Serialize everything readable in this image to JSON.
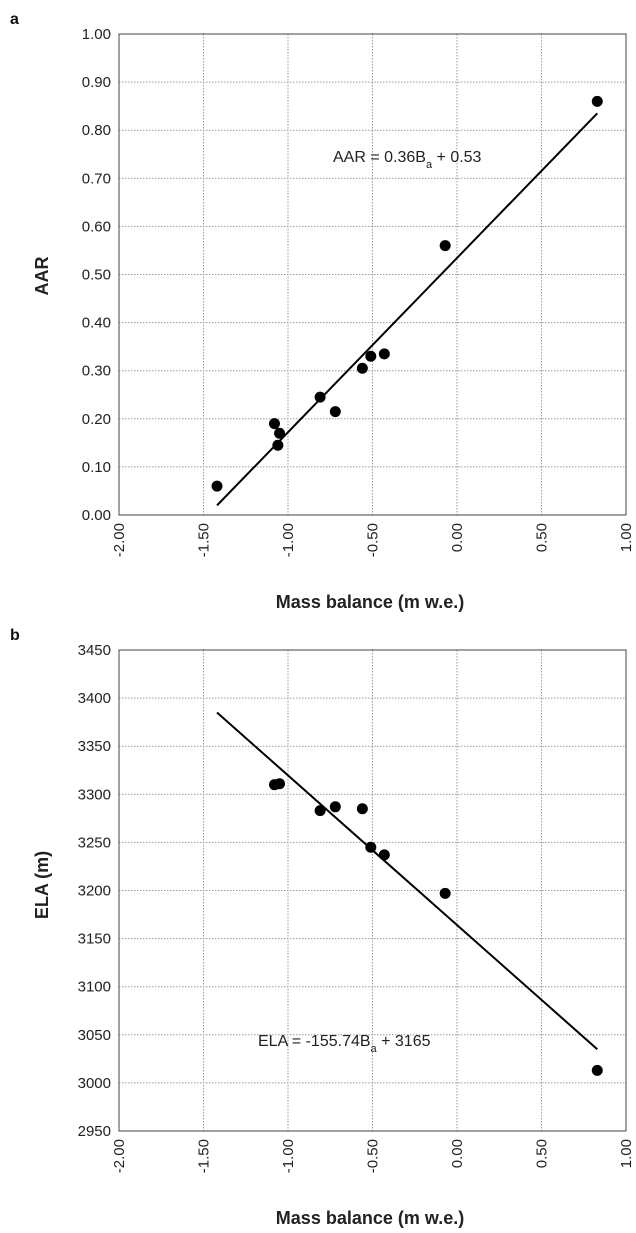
{
  "chart_data": [
    {
      "type": "scatter",
      "panel": "a",
      "xlabel": "Mass balance (m w.e.)",
      "ylabel": "AAR",
      "xlim": [
        -2.0,
        1.0
      ],
      "ylim": [
        0.0,
        1.0
      ],
      "xticks": [
        "-2.00",
        "-1.50",
        "-1.00",
        "-0.50",
        "0.00",
        "0.50",
        "1.00"
      ],
      "yticks": [
        "0.00",
        "0.10",
        "0.20",
        "0.30",
        "0.40",
        "0.50",
        "0.60",
        "0.70",
        "0.80",
        "0.90",
        "1.00"
      ],
      "grid": true,
      "points": [
        {
          "x": -1.42,
          "y": 0.06
        },
        {
          "x": -1.08,
          "y": 0.19
        },
        {
          "x": -1.05,
          "y": 0.17
        },
        {
          "x": -1.06,
          "y": 0.145
        },
        {
          "x": -0.81,
          "y": 0.245
        },
        {
          "x": -0.72,
          "y": 0.215
        },
        {
          "x": -0.56,
          "y": 0.305
        },
        {
          "x": -0.51,
          "y": 0.33
        },
        {
          "x": -0.43,
          "y": 0.335
        },
        {
          "x": -0.07,
          "y": 0.56
        },
        {
          "x": 0.83,
          "y": 0.86
        }
      ],
      "trendline": {
        "x": [
          -1.42,
          0.83
        ],
        "y": [
          0.02,
          0.835
        ]
      },
      "equation": {
        "prefix": "AAR = 0.36B",
        "sub": "a",
        "suffix": " + 0.53"
      }
    },
    {
      "type": "scatter",
      "panel": "b",
      "xlabel": "Mass balance (m w.e.)",
      "ylabel": "ELA (m)",
      "xlim": [
        -2.0,
        1.0
      ],
      "ylim": [
        2950,
        3450
      ],
      "xticks": [
        "-2.00",
        "-1.50",
        "-1.00",
        "-0.50",
        "0.00",
        "0.50",
        "1.00"
      ],
      "yticks": [
        "2950",
        "3000",
        "3050",
        "3100",
        "3150",
        "3200",
        "3250",
        "3300",
        "3350",
        "3400",
        "3450"
      ],
      "grid": true,
      "points": [
        {
          "x": -1.08,
          "y": 3310
        },
        {
          "x": -1.05,
          "y": 3311
        },
        {
          "x": -0.81,
          "y": 3283
        },
        {
          "x": -0.72,
          "y": 3287
        },
        {
          "x": -0.56,
          "y": 3285
        },
        {
          "x": -0.51,
          "y": 3245
        },
        {
          "x": -0.43,
          "y": 3237
        },
        {
          "x": -0.07,
          "y": 3197
        },
        {
          "x": 0.83,
          "y": 3013
        }
      ],
      "trendline": {
        "x": [
          -1.42,
          0.83
        ],
        "y": [
          3385,
          3035
        ]
      },
      "equation": {
        "prefix": "ELA = -155.74B",
        "sub": "a",
        "suffix": " + 3165"
      }
    }
  ]
}
